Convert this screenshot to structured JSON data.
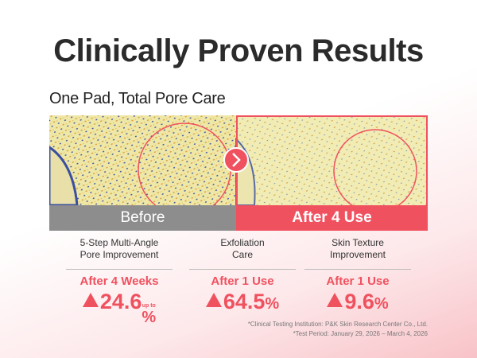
{
  "header": {
    "title": "Clinically Proven Results",
    "subtitle": "One Pad, Total Pore Care"
  },
  "comparison": {
    "before": "Before",
    "after": "After 4 Use"
  },
  "stats": [
    {
      "label_lines": [
        "5-Step Multi-Angle",
        "Pore Improvement"
      ],
      "period": "After 4 Weeks",
      "value": "24.6",
      "qualifier": "up to",
      "unit": "%"
    },
    {
      "label_lines": [
        "Exfoliation",
        "Care"
      ],
      "period": "After 1 Use",
      "value": "64.5",
      "unit": "%"
    },
    {
      "label_lines": [
        "Skin Texture",
        "Improvement"
      ],
      "period": "After 1 Use",
      "value": "9.6",
      "unit": "%"
    }
  ],
  "footnotes": [
    "*Clinical Testing Institution: P&K Skin Research Center Co., Ltd.",
    "*Test Period: January 29, 2026 – March 4, 2026"
  ]
}
